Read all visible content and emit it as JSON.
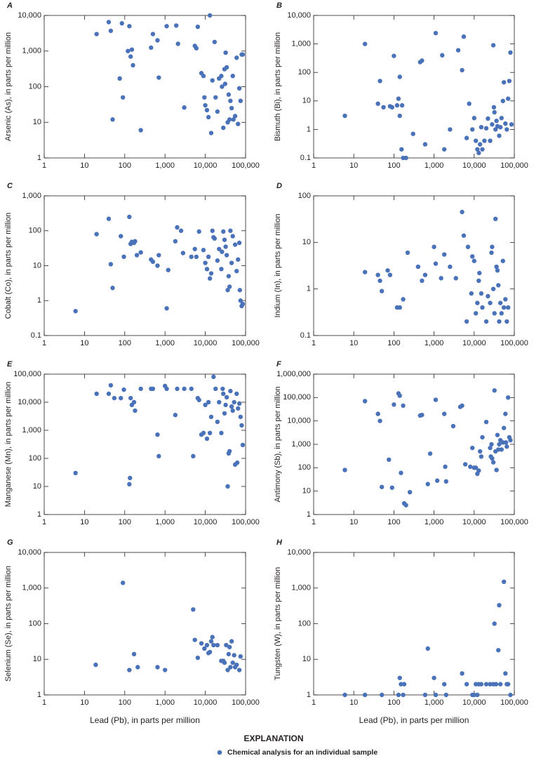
{
  "chart_data": [
    {
      "type": "scatter",
      "panel_label": "A",
      "y_label": "Arsenic (As), in parts per million",
      "color": "#4a72b8",
      "log_x": true,
      "log_y": true,
      "xlim": [
        1,
        100000
      ],
      "xticks": [
        1,
        10,
        100,
        {
          "value": 1000,
          "label": "1,000"
        },
        {
          "value": 10000,
          "label": "10,000"
        },
        {
          "value": 100000,
          "label": "100,000"
        }
      ],
      "ylim": [
        1,
        10000
      ],
      "yticks": [
        1,
        10,
        100,
        {
          "value": 1000,
          "label": "1,000"
        },
        {
          "value": 10000,
          "label": "10,000"
        }
      ],
      "x": [
        20,
        40,
        45,
        50,
        75,
        85,
        90,
        120,
        130,
        140,
        150,
        160,
        250,
        450,
        500,
        650,
        700,
        1100,
        1900,
        2100,
        3000,
        5500,
        6000,
        6500,
        8000,
        9000,
        9500,
        10000,
        11000,
        12000,
        13000,
        14000,
        15000,
        17000,
        18000,
        20000,
        22000,
        25000,
        26000,
        28000,
        30000,
        31000,
        32000,
        34000,
        36000,
        38000,
        40000,
        42000,
        45000,
        48000,
        50000,
        55000,
        60000,
        65000,
        70000,
        75000,
        80000,
        85000
      ],
      "y": [
        3000,
        6500,
        3700,
        12,
        170,
        6000,
        50,
        1000,
        5000,
        700,
        1100,
        400,
        6,
        1250,
        3000,
        2000,
        180,
        5000,
        5200,
        1600,
        26,
        1400,
        1200,
        4800,
        240,
        200,
        50,
        30,
        22,
        14,
        10000,
        5,
        150,
        1800,
        50,
        20,
        170,
        200,
        100,
        7,
        310,
        120,
        900,
        350,
        10,
        60,
        12,
        40,
        25,
        200,
        12,
        15,
        650,
        9,
        90,
        40,
        800,
        800
      ]
    },
    {
      "type": "scatter",
      "panel_label": "B",
      "y_label": "Bismuth (Bi), in parts per million",
      "color": "#4a72b8",
      "log_x": true,
      "log_y": true,
      "xlim": [
        1,
        100000
      ],
      "xticks": [
        1,
        10,
        100,
        {
          "value": 1000,
          "label": "1,000"
        },
        {
          "value": 10000,
          "label": "10,000"
        },
        {
          "value": 100000,
          "label": "100,000"
        }
      ],
      "ylim": [
        0.1,
        10000
      ],
      "yticks": [
        0.1,
        1,
        10,
        100,
        {
          "value": 1000,
          "label": "1,000"
        },
        {
          "value": 10000,
          "label": "10,000"
        }
      ],
      "x": [
        6,
        19,
        40,
        45,
        55,
        80,
        90,
        100,
        120,
        130,
        140,
        140,
        155,
        160,
        170,
        200,
        300,
        450,
        500,
        600,
        1100,
        1600,
        1800,
        2500,
        4000,
        5000,
        5500,
        6500,
        7500,
        9000,
        10000,
        11000,
        12000,
        13000,
        14000,
        15000,
        16000,
        18000,
        20000,
        22000,
        25000,
        28000,
        30000,
        31000,
        32000,
        34000,
        36000,
        38000,
        42000,
        45000,
        48000,
        52000,
        55000,
        60000,
        65000,
        70000,
        75000,
        80000,
        85000
      ],
      "y": [
        3,
        1000,
        8,
        50,
        6,
        6.5,
        6,
        380,
        7,
        12,
        70,
        3,
        0.2,
        7,
        0.1,
        0.1,
        0.7,
        230,
        260,
        0.3,
        2400,
        400,
        0.2,
        1,
        600,
        120,
        1800,
        0.5,
        8,
        1,
        2.5,
        0.4,
        0.2,
        0.15,
        0.3,
        1.2,
        0.2,
        0.4,
        1.1,
        2.4,
        0.4,
        1.5,
        900,
        6,
        4,
        1,
        2,
        1.3,
        0.6,
        1.2,
        2.5,
        10,
        45,
        1.6,
        1,
        12,
        50,
        500,
        1.5
      ]
    },
    {
      "type": "scatter",
      "panel_label": "C",
      "y_label": "Cobalt (Co), in parts per million",
      "color": "#4a72b8",
      "log_x": true,
      "log_y": true,
      "xlim": [
        1,
        100000
      ],
      "xticks": [
        1,
        10,
        100,
        {
          "value": 1000,
          "label": "1,000"
        },
        {
          "value": 10000,
          "label": "10,000"
        },
        {
          "value": 100000,
          "label": "100,000"
        }
      ],
      "ylim": [
        0.1,
        1000
      ],
      "yticks": [
        0.1,
        1,
        10,
        100,
        {
          "value": 1000,
          "label": "1,000"
        }
      ],
      "x": [
        6,
        20,
        40,
        45,
        50,
        80,
        95,
        130,
        140,
        150,
        170,
        180,
        200,
        250,
        450,
        500,
        650,
        700,
        1100,
        1200,
        1800,
        2000,
        2500,
        2800,
        4500,
        5500,
        6000,
        7000,
        9000,
        10000,
        11000,
        12000,
        13000,
        14000,
        15000,
        16000,
        17000,
        20000,
        22000,
        25000,
        26000,
        28000,
        30000,
        32000,
        34000,
        36000,
        38000,
        40000,
        42000,
        45000,
        48000,
        55000,
        60000,
        65000,
        70000,
        72000,
        75000,
        80000,
        85000
      ],
      "y": [
        0.5,
        80,
        220,
        11,
        2.3,
        70,
        18,
        250,
        42,
        48,
        45,
        50,
        20,
        24,
        15,
        13,
        10,
        20,
        0.6,
        7.5,
        50,
        125,
        100,
        23,
        18,
        30,
        18,
        95,
        28,
        12,
        8,
        18,
        4.3,
        6,
        100,
        65,
        60,
        14,
        30,
        8,
        25,
        95,
        55,
        35,
        20,
        2,
        5,
        2.5,
        100,
        12,
        70,
        40,
        7,
        15,
        45,
        2,
        1,
        0.7,
        0.8
      ]
    },
    {
      "type": "scatter",
      "panel_label": "D",
      "y_label": "Indium (In), in parts per million",
      "color": "#4a72b8",
      "log_x": true,
      "log_y": true,
      "xlim": [
        1,
        100000
      ],
      "xticks": [
        1,
        10,
        100,
        {
          "value": 1000,
          "label": "1,000"
        },
        {
          "value": 10000,
          "label": "10,000"
        },
        {
          "value": 100000,
          "label": "100,000"
        }
      ],
      "ylim": [
        0.1,
        100
      ],
      "yticks": [
        0.1,
        1,
        10,
        100
      ],
      "x": [
        19,
        40,
        45,
        50,
        70,
        80,
        120,
        140,
        170,
        220,
        400,
        500,
        600,
        1000,
        1100,
        1500,
        1800,
        2500,
        3500,
        5000,
        5500,
        6500,
        7000,
        8500,
        9000,
        10000,
        11000,
        12000,
        13000,
        13500,
        15000,
        16000,
        20000,
        22000,
        25000,
        27000,
        28000,
        30000,
        32000,
        34000,
        36000,
        38000,
        40000,
        42000,
        45000,
        48000,
        52000,
        55000,
        60000,
        65000,
        70000
      ],
      "y": [
        2.3,
        2,
        1.5,
        0.9,
        2.5,
        2,
        0.4,
        0.4,
        0.6,
        6,
        3,
        1.5,
        2,
        8,
        3.5,
        1.7,
        5.5,
        3,
        1.7,
        45,
        14,
        0.2,
        8,
        0.8,
        5,
        4,
        0.3,
        0.5,
        1.5,
        2.2,
        0.8,
        0.4,
        0.2,
        0.7,
        0.5,
        6,
        8,
        1,
        0.3,
        32,
        3,
        2.5,
        1.2,
        0.2,
        0.5,
        0.3,
        4,
        0.4,
        0.6,
        0.2,
        0.4
      ]
    },
    {
      "type": "scatter",
      "panel_label": "E",
      "y_label": "Manganese (Mn), in parts per million",
      "color": "#4a72b8",
      "log_x": true,
      "log_y": true,
      "xlim": [
        1,
        100000
      ],
      "xticks": [
        1,
        10,
        100,
        {
          "value": 1000,
          "label": "1,000"
        },
        {
          "value": 10000,
          "label": "10,000"
        },
        {
          "value": 100000,
          "label": "100,000"
        }
      ],
      "ylim": [
        1,
        100000
      ],
      "yticks": [
        1,
        10,
        100,
        {
          "value": 1000,
          "label": "1,000"
        },
        {
          "value": 10000,
          "label": "10,000"
        },
        {
          "value": 100000,
          "label": "100,000"
        }
      ],
      "x": [
        6,
        20,
        40,
        45,
        55,
        80,
        95,
        130,
        135,
        140,
        150,
        170,
        180,
        250,
        450,
        500,
        650,
        700,
        1000,
        1100,
        1800,
        2000,
        3000,
        4500,
        5000,
        6500,
        7000,
        8000,
        9000,
        10000,
        11000,
        12000,
        13000,
        14000,
        16000,
        18000,
        20000,
        22000,
        25000,
        27000,
        28000,
        30000,
        32000,
        34000,
        36000,
        38000,
        40000,
        42000,
        45000,
        48000,
        52000,
        55000,
        60000,
        62000,
        65000,
        70000,
        75000,
        80000,
        85000
      ],
      "y": [
        30,
        20000,
        20000,
        40000,
        14000,
        14000,
        28000,
        12,
        20,
        14000,
        8000,
        10000,
        5000,
        30000,
        30000,
        30000,
        700,
        120,
        38000,
        30000,
        3500,
        30000,
        30000,
        30000,
        120,
        14000,
        12000,
        700,
        800,
        8000,
        500,
        10000,
        800,
        3000,
        80000,
        30000,
        2000,
        10000,
        800,
        30000,
        20000,
        4000,
        8000,
        15000,
        10,
        150,
        180,
        25000,
        7000,
        5000,
        10000,
        60,
        20000,
        70,
        6000,
        9000,
        3000,
        1500,
        300
      ]
    },
    {
      "type": "scatter",
      "panel_label": "F",
      "y_label": "Antimony (Sb), in parts per million",
      "color": "#4a72b8",
      "log_x": true,
      "log_y": true,
      "xlim": [
        1,
        100000
      ],
      "xticks": [
        1,
        10,
        100,
        {
          "value": 1000,
          "label": "1,000"
        },
        {
          "value": 10000,
          "label": "10,000"
        },
        {
          "value": 100000,
          "label": "100,000"
        }
      ],
      "ylim": [
        1,
        1000000
      ],
      "yticks": [
        1,
        10,
        100,
        {
          "value": 1000,
          "label": "1,000"
        },
        {
          "value": 10000,
          "label": "10,000"
        },
        {
          "value": 100000,
          "label": "100,000"
        },
        {
          "value": 1000000,
          "label": "1,000,000"
        }
      ],
      "x": [
        6,
        19,
        40,
        45,
        50,
        75,
        90,
        100,
        130,
        140,
        150,
        170,
        180,
        200,
        250,
        450,
        500,
        700,
        800,
        1100,
        1200,
        1800,
        1900,
        2000,
        3000,
        4500,
        5000,
        6000,
        8000,
        9000,
        10000,
        11000,
        12000,
        13000,
        14000,
        15000,
        16000,
        20000,
        25000,
        26000,
        27000,
        28000,
        30000,
        32000,
        34000,
        36000,
        38000,
        40000,
        42000,
        45000,
        48000,
        52000,
        55000,
        60000,
        62000,
        65000,
        70000,
        75000,
        80000
      ],
      "y": [
        80,
        70000,
        20000,
        10000,
        15,
        220,
        14,
        50000,
        150000,
        120000,
        60,
        45000,
        3,
        2.5,
        9,
        17000,
        18000,
        20,
        400,
        80000,
        28,
        20000,
        110,
        26,
        6000,
        40000,
        45000,
        140,
        110,
        700,
        100,
        100,
        55,
        75,
        500,
        300,
        2000,
        9000,
        700,
        300,
        1000,
        250,
        170,
        200000,
        500,
        80,
        2500,
        600,
        1000,
        1500,
        600,
        1200,
        5000,
        20000,
        1200,
        800,
        100000,
        2000,
        1500
      ]
    },
    {
      "type": "scatter",
      "panel_label": "G",
      "y_label": "Selenium (Se), in parts per million",
      "x_label": "Lead (Pb), in parts per million",
      "color": "#4a72b8",
      "log_x": true,
      "log_y": true,
      "xlim": [
        1,
        100000
      ],
      "xticks": [
        1,
        10,
        100,
        {
          "value": 1000,
          "label": "1,000"
        },
        {
          "value": 10000,
          "label": "10,000"
        },
        {
          "value": 100000,
          "label": "100,000"
        }
      ],
      "ylim": [
        1,
        10000
      ],
      "yticks": [
        1,
        10,
        100,
        {
          "value": 1000,
          "label": "1,000"
        },
        {
          "value": 10000,
          "label": "10,000"
        }
      ],
      "x": [
        19,
        90,
        130,
        170,
        210,
        650,
        1000,
        5000,
        5500,
        6500,
        8000,
        9500,
        11000,
        12000,
        13000,
        14000,
        15000,
        16000,
        20000,
        25000,
        28000,
        30000,
        33000,
        36000,
        38000,
        40000,
        42000,
        45000,
        48000,
        52000,
        55000,
        60000,
        70000,
        75000
      ],
      "y": [
        7,
        1400,
        5,
        14,
        6,
        6,
        5,
        250,
        35,
        11,
        28,
        20,
        25,
        15,
        16,
        32,
        42,
        25,
        25,
        9,
        9,
        8,
        25,
        5,
        14,
        22,
        6,
        32,
        8,
        13,
        6,
        7,
        5,
        12
      ]
    },
    {
      "type": "scatter",
      "panel_label": "H",
      "y_label": "Tungsten (W), in parts per million",
      "x_label": "Lead  (Pb), in parts per million",
      "color": "#4a72b8",
      "log_x": true,
      "log_y": true,
      "xlim": [
        1,
        100000
      ],
      "xticks": [
        1,
        10,
        100,
        {
          "value": 1000,
          "label": "1,000"
        },
        {
          "value": 10000,
          "label": "10,000"
        },
        {
          "value": 100000,
          "label": "100,000"
        }
      ],
      "ylim": [
        1,
        10000
      ],
      "yticks": [
        1,
        10,
        100,
        {
          "value": 1000,
          "label": "1,000"
        },
        {
          "value": 10000,
          "label": "10,000"
        }
      ],
      "x": [
        6,
        19,
        50,
        130,
        140,
        150,
        170,
        180,
        600,
        700,
        1000,
        1100,
        1800,
        2000,
        5000,
        6500,
        9000,
        10000,
        11000,
        12000,
        13000,
        15000,
        20000,
        25000,
        30000,
        32000,
        35000,
        40000,
        42000,
        45000,
        55000,
        60000,
        65000,
        70000,
        80000
      ],
      "y": [
        1,
        1,
        1,
        1,
        3,
        2,
        1,
        2,
        1,
        20,
        3,
        1,
        2,
        1,
        4,
        2,
        1,
        1,
        2,
        1,
        2,
        2,
        2,
        2,
        2,
        100,
        2,
        18,
        330,
        2,
        1500,
        4,
        2,
        2,
        1
      ]
    }
  ],
  "explanation": {
    "title": "EXPLANATION",
    "label": "Chemical analysis for an individual sample"
  }
}
